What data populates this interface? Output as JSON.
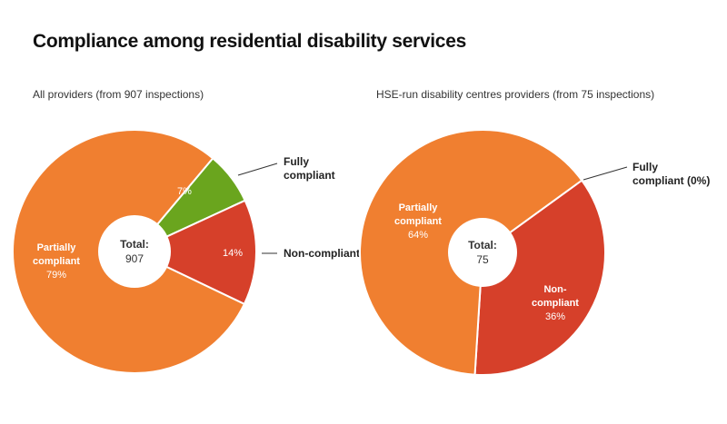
{
  "chart_data": [
    {
      "type": "pie",
      "title": "Compliance among residential disability services",
      "subtitle": "All providers (from 907 inspections)",
      "center_label": "Total:",
      "center_value": "907",
      "start_angle_deg": 40,
      "slices": [
        {
          "label": "Fully compliant",
          "value": 7,
          "display": "7%",
          "color": "#6aa51e"
        },
        {
          "label": "Non-compliant",
          "value": 14,
          "display": "14%",
          "color": "#d6402a"
        },
        {
          "label": "Partially compliant",
          "value": 79,
          "display": "79%",
          "color": "#f07f30"
        }
      ]
    },
    {
      "type": "pie",
      "subtitle": "HSE-run disability centres providers (from 75 inspections)",
      "center_label": "Total:",
      "center_value": "75",
      "start_angle_deg": 54,
      "slices": [
        {
          "label": "Fully compliant (0%)",
          "value": 0,
          "display": "",
          "color": "#6aa51e"
        },
        {
          "label": "Non-compliant",
          "value": 36,
          "display": "36%",
          "color": "#d6402a"
        },
        {
          "label": "Partially compliant",
          "value": 64,
          "display": "64%",
          "color": "#f07f30"
        }
      ]
    }
  ]
}
